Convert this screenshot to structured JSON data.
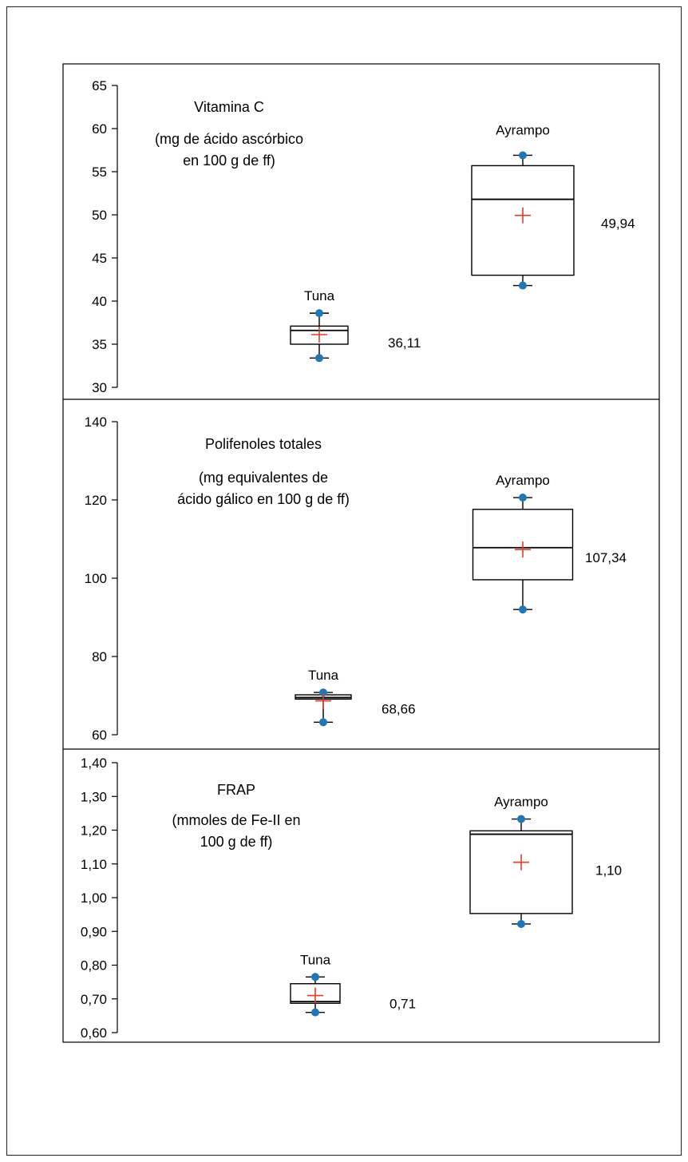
{
  "chart_data": [
    {
      "type": "box",
      "title": "Vitamina C",
      "subtitle": [
        "(mg de ácido ascórbico",
        "en 100 g de ff)"
      ],
      "ylim": [
        30,
        65
      ],
      "yticks": [
        30,
        35,
        40,
        45,
        50,
        55,
        60,
        65
      ],
      "decimals": 0,
      "boxes": [
        {
          "label": "Tuna",
          "whisker_low": 33.4,
          "q1": 35.0,
          "median": 36.6,
          "q3": 37.1,
          "whisker_high": 38.6,
          "mean": 36.11,
          "mean_label": "36,11"
        },
        {
          "label": "Ayrampo",
          "whisker_low": 41.8,
          "q1": 43.0,
          "median": 51.8,
          "q3": 55.7,
          "whisker_high": 56.9,
          "mean": 49.94,
          "mean_label": "49,94"
        }
      ]
    },
    {
      "type": "box",
      "title": "Polifenoles totales",
      "subtitle": [
        "(mg equivalentes de",
        "ácido gálico en 100 g de ff)"
      ],
      "ylim": [
        60,
        140
      ],
      "yticks": [
        60,
        80,
        100,
        120,
        140
      ],
      "decimals": 0,
      "boxes": [
        {
          "label": "Tuna",
          "whisker_low": 63.2,
          "q1": 69.1,
          "median": 69.5,
          "q3": 70.2,
          "whisker_high": 70.8,
          "mean": 68.66,
          "mean_label": "68,66"
        },
        {
          "label": "Ayrampo",
          "whisker_low": 92.0,
          "q1": 99.6,
          "median": 107.8,
          "q3": 117.6,
          "whisker_high": 120.6,
          "mean": 107.34,
          "mean_label": "107,34"
        }
      ]
    },
    {
      "type": "box",
      "title": "FRAP",
      "subtitle": [
        "(mmoles de Fe-II en",
        "100 g de ff)"
      ],
      "ylim": [
        0.6,
        1.4
      ],
      "yticks": [
        0.6,
        0.7,
        0.8,
        0.9,
        1.0,
        1.1,
        1.2,
        1.3,
        1.4
      ],
      "decimals": 2,
      "boxes": [
        {
          "label": "Tuna",
          "whisker_low": 0.66,
          "q1": 0.687,
          "median": 0.692,
          "q3": 0.745,
          "whisker_high": 0.765,
          "mean": 0.71,
          "mean_label": "0,71"
        },
        {
          "label": "Ayrampo",
          "whisker_low": 0.922,
          "q1": 0.953,
          "median": 1.188,
          "q3": 1.198,
          "whisker_high": 1.233,
          "mean": 1.105,
          "mean_label": "1,10"
        }
      ]
    }
  ],
  "colors": {
    "point": "#1f77b4",
    "mean": "#e03c2a",
    "line": "#000000"
  }
}
